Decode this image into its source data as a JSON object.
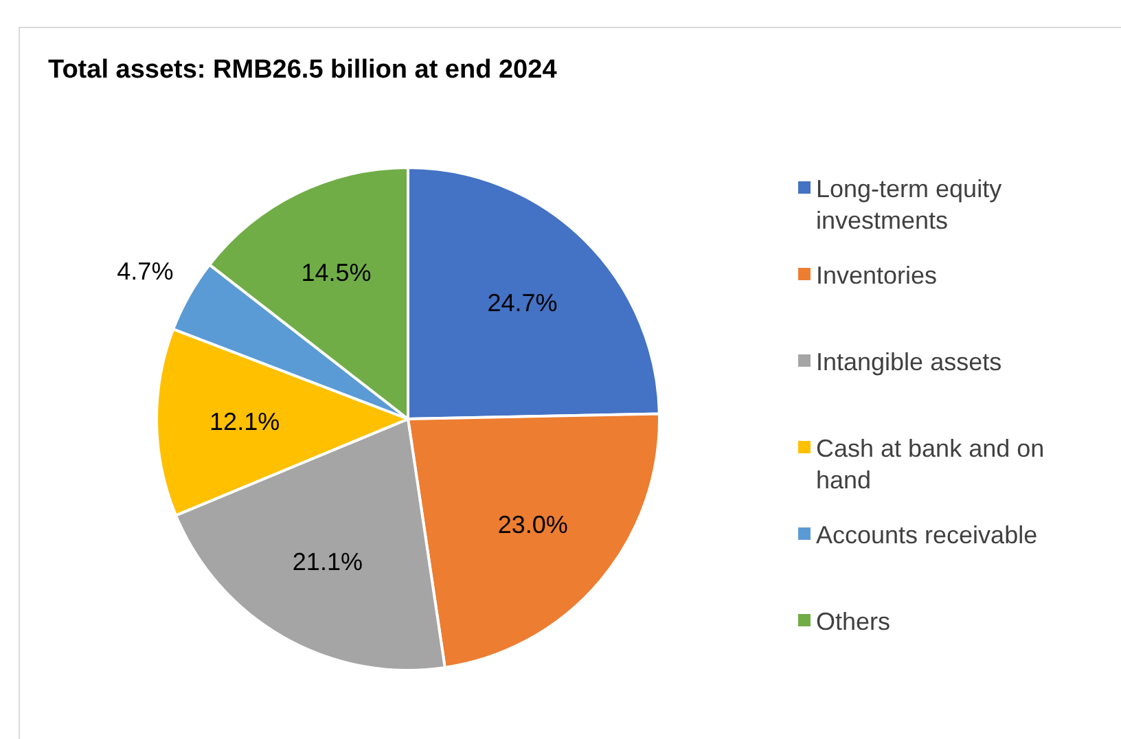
{
  "chart_data": {
    "type": "pie",
    "title": "Total assets: RMB26.5 billion at end 2024",
    "categories": [
      "Long-term equity investments",
      "Inventories",
      "Intangible assets",
      "Cash at bank and on hand",
      "Accounts receivable",
      "Others"
    ],
    "values": [
      24.7,
      23.0,
      21.1,
      12.1,
      4.7,
      14.5
    ],
    "colors": [
      "#4472c4",
      "#ed7d31",
      "#a5a5a5",
      "#ffc000",
      "#5b9bd5",
      "#70ad47"
    ],
    "value_labels": [
      "24.7%",
      "23.0%",
      "21.1%",
      "12.1%",
      "4.7%",
      "14.5%"
    ],
    "legend": "right"
  }
}
